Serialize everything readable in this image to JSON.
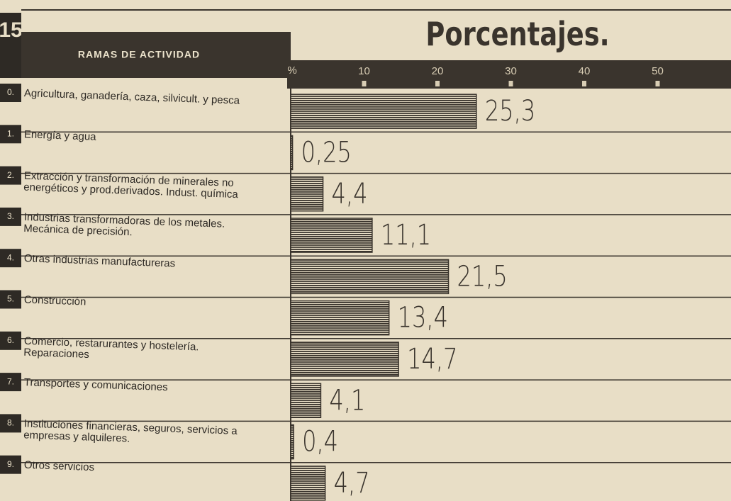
{
  "chart_data": {
    "type": "hbar",
    "number": "15",
    "title": "Porcentajes.",
    "header": "RAMAS DE ACTIVIDAD",
    "xlabel": "%",
    "codes": [
      "0.",
      "1.",
      "2.",
      "3.",
      "4.",
      "5.",
      "6.",
      "7.",
      "8.",
      "9."
    ],
    "categories": [
      "Agricultura, ganadería, caza, silvicult. y pesca",
      "Energía y agua",
      "Extracción y transformación de minerales no\nenergéticos y prod.derivados. Indust. química",
      "Industrias transformadoras de los metales.\nMecánica de precisión.",
      "Otras industrias manufactureras",
      "Construcción",
      "Comercio, restarurantes y hostelería.\nReparaciones",
      "Transportes y comunicaciones",
      "Instituciones financieras, seguros, servicios a\nempresas y alquileres.",
      "Otros servicios"
    ],
    "values": [
      25.3,
      0.25,
      4.4,
      11.1,
      21.5,
      13.4,
      14.7,
      4.1,
      0.4,
      4.7
    ],
    "value_labels": [
      "25,3",
      "0,25",
      "4,4",
      "11,1",
      "21,5",
      "13,4",
      "14,7",
      "4,1",
      "0,4",
      "4,7"
    ],
    "color": "#3a342d",
    "xlim": [
      0,
      60
    ],
    "xticks": [
      10,
      20,
      30,
      40,
      50
    ]
  }
}
